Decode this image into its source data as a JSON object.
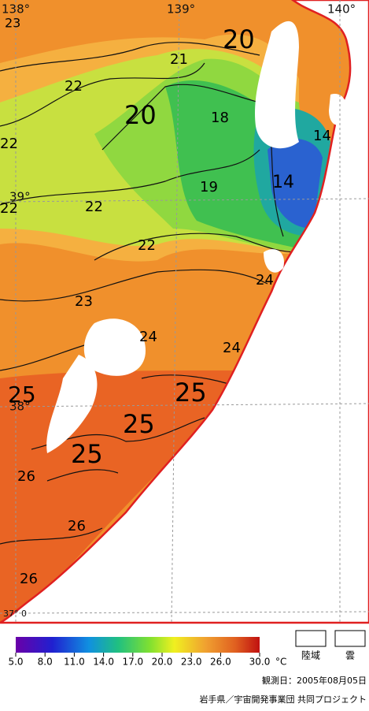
{
  "map": {
    "longitude_labels": [
      "138°",
      "139°",
      "140°"
    ],
    "latitude_labels": [
      "39°",
      "38°",
      "37° 0"
    ],
    "contour_labels": [
      "23",
      "20",
      "21",
      "22",
      "20",
      "18",
      "14",
      "22",
      "19",
      "14",
      "22",
      "22",
      "22",
      "24",
      "23",
      "24",
      "24",
      "25",
      "25",
      "25",
      "25",
      "26",
      "26",
      "26"
    ],
    "colorbar": {
      "ticks": [
        {
          "value": 5,
          "label": "5.0"
        },
        {
          "value": 8,
          "label": "8.0"
        },
        {
          "value": 11,
          "label": "11.0"
        },
        {
          "value": 14,
          "label": "14.0"
        },
        {
          "value": 17,
          "label": "17.0"
        },
        {
          "value": 20,
          "label": "20.0"
        },
        {
          "value": 23,
          "label": "23.0"
        },
        {
          "value": 26,
          "label": "26.0"
        },
        {
          "value": 30,
          "label": "30.0"
        }
      ],
      "unit": "°C"
    },
    "legend": [
      "陸域",
      "雲"
    ],
    "observation_date": "観測日：2005年08月05日",
    "credit": "岩手県／宇宙開発事業団 共同プロジェクト"
  }
}
